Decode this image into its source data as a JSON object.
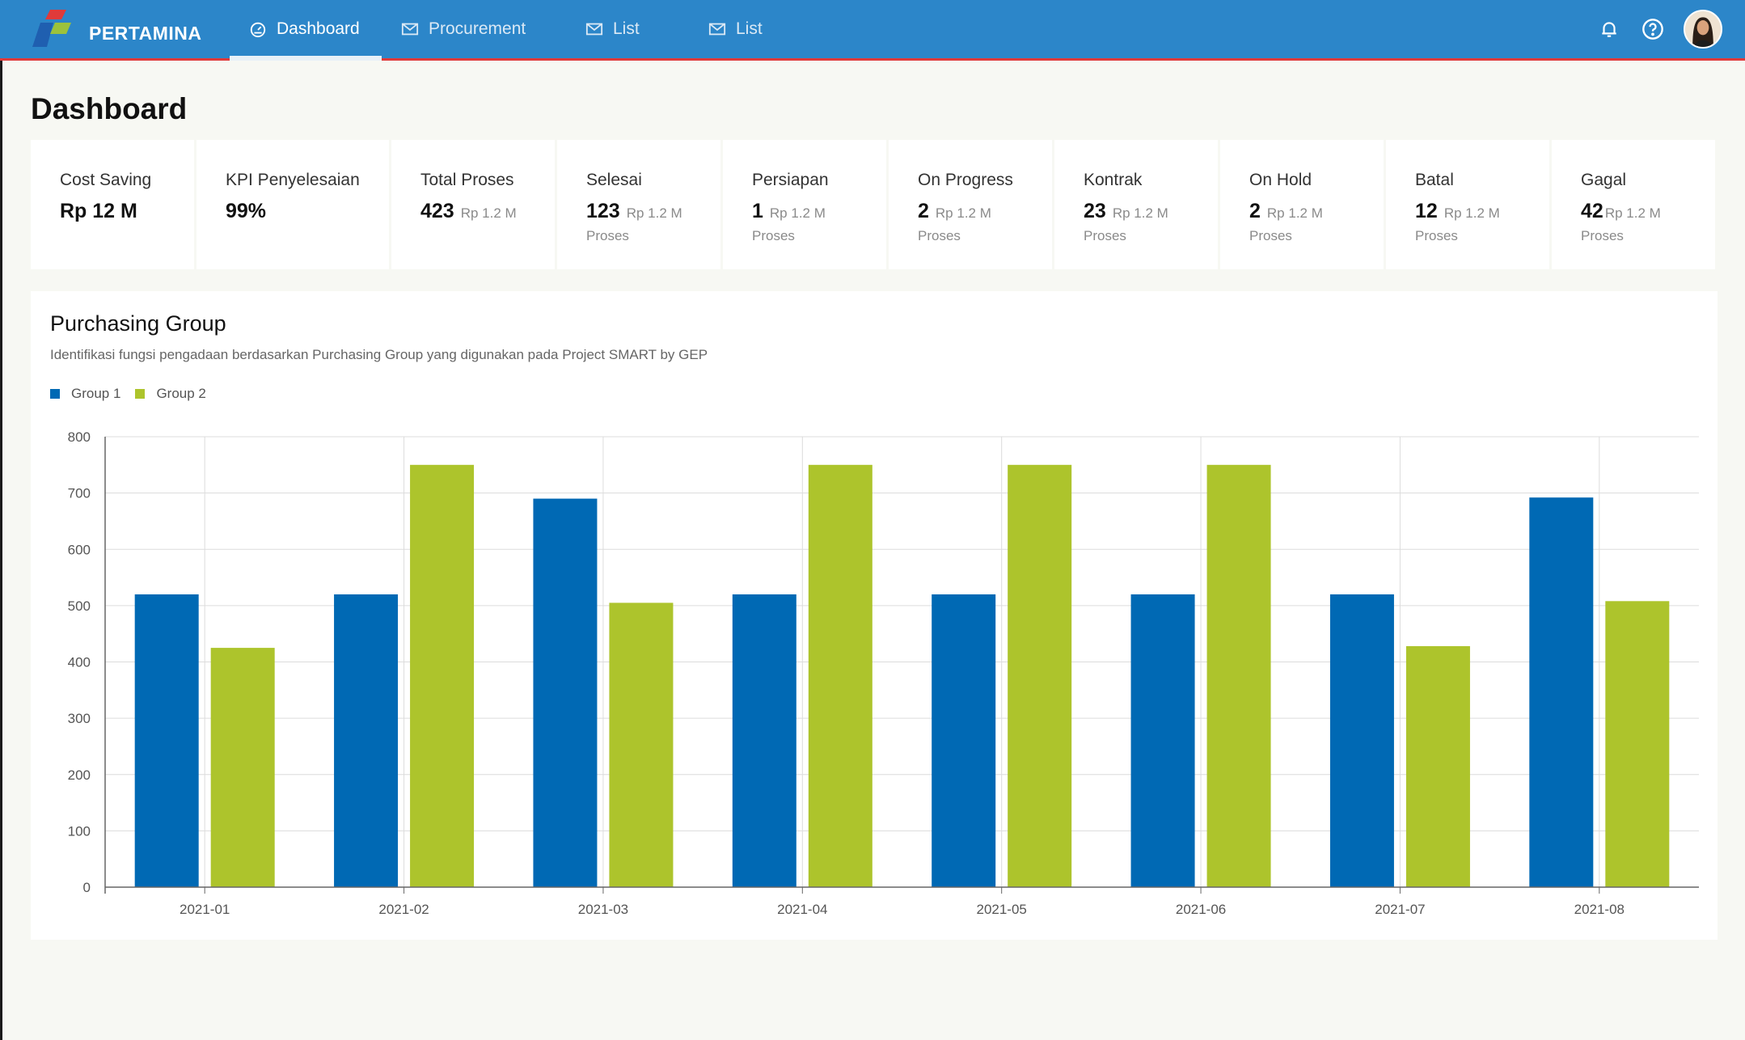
{
  "brand": {
    "name": "PERTAMINA"
  },
  "nav": [
    {
      "label": "Dashboard",
      "icon": "dashboard-icon",
      "active": true
    },
    {
      "label": "Procurement",
      "icon": "mail-icon",
      "active": false
    },
    {
      "label": "List",
      "icon": "mail-icon",
      "active": false
    },
    {
      "label": "List",
      "icon": "mail-icon",
      "active": false
    }
  ],
  "header_icons": [
    "bell-icon",
    "help-icon",
    "avatar"
  ],
  "page": {
    "title": "Dashboard"
  },
  "cards": [
    {
      "label": "Cost Saving",
      "value": "Rp 12 M"
    },
    {
      "label": "KPI Penyelesaian",
      "value": "99%"
    },
    {
      "label": "Total Proses",
      "value": "423",
      "rp": "Rp 1.2 M"
    },
    {
      "label": "Selesai",
      "value": "123",
      "rp": "Rp 1.2 M",
      "sub": "Proses"
    },
    {
      "label": "Persiapan",
      "value": "1",
      "rp": "Rp 1.2 M",
      "sub": "Proses"
    },
    {
      "label": "On Progress",
      "value": "2",
      "rp": "Rp 1.2 M",
      "sub": "Proses"
    },
    {
      "label": "Kontrak",
      "value": "23",
      "rp": "Rp 1.2 M",
      "sub": "Proses"
    },
    {
      "label": "On Hold",
      "value": "2",
      "rp": "Rp 1.2 M",
      "sub": "Proses"
    },
    {
      "label": "Batal",
      "value": "12",
      "rp": "Rp 1.2 M",
      "sub": "Proses"
    },
    {
      "label": "Gagal",
      "value": "42",
      "rp": "Rp 1.2 M",
      "sub": "Proses"
    }
  ],
  "panel": {
    "title": "Purchasing Group",
    "subtitle": "Identifikasi fungsi pengadaan berdasarkan Purchasing Group yang digunakan pada Project SMART by GEP"
  },
  "colors": {
    "topbar": "#2c86c9",
    "accent_line": "#e03a3a",
    "group1": "#0069b4",
    "group2": "#adc42c"
  },
  "chart_data": {
    "type": "bar",
    "categories": [
      "2021-01",
      "2021-02",
      "2021-03",
      "2021-04",
      "2021-05",
      "2021-06",
      "2021-07",
      "2021-08"
    ],
    "series": [
      {
        "name": "Group 1",
        "color": "#0069b4",
        "values": [
          520,
          520,
          690,
          520,
          520,
          520,
          520,
          692
        ]
      },
      {
        "name": "Group 2",
        "color": "#adc42c",
        "values": [
          425,
          750,
          505,
          750,
          750,
          750,
          428,
          508
        ]
      }
    ],
    "yticks": [
      "0",
      "100",
      "200",
      "300",
      "400",
      "500",
      "600",
      "700",
      "800"
    ],
    "ylim": [
      0,
      800
    ],
    "grid": true,
    "legend": "top-left"
  }
}
